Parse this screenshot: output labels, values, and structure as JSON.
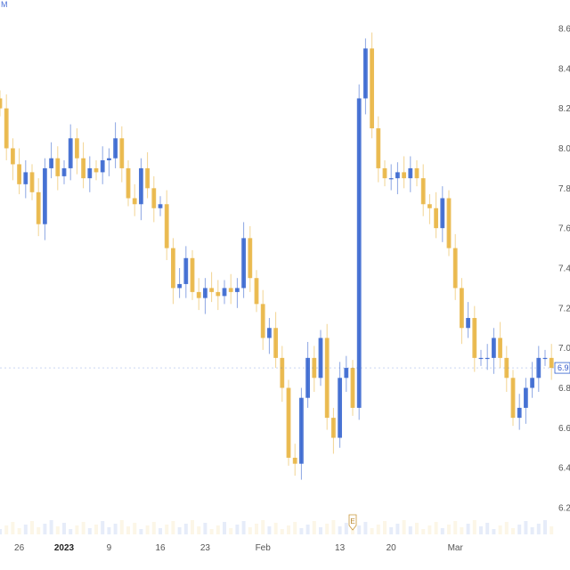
{
  "chart_data": {
    "type": "candlestick",
    "title": "",
    "xlabel": "",
    "ylabel": "",
    "ylim": [
      6.1,
      8.65
    ],
    "y_ticks": [
      "6.2",
      "6.4",
      "6.6",
      "6.8",
      "7.0",
      "7.2",
      "7.4",
      "7.6",
      "7.8",
      "8.0",
      "8.2",
      "8.4",
      "8.6"
    ],
    "x_ticks": [
      {
        "label": "26",
        "index": 3,
        "bold": false
      },
      {
        "label": "2023",
        "index": 10,
        "bold": true
      },
      {
        "label": "9",
        "index": 17,
        "bold": false
      },
      {
        "label": "16",
        "index": 25,
        "bold": false
      },
      {
        "label": "23",
        "index": 32,
        "bold": false
      },
      {
        "label": "Feb",
        "index": 41,
        "bold": false
      },
      {
        "label": "13",
        "index": 53,
        "bold": false
      },
      {
        "label": "20",
        "index": 61,
        "bold": false
      },
      {
        "label": "Mar",
        "index": 71,
        "bold": false
      }
    ],
    "up_color": "#2f5fce",
    "down_color": "#e8b13a",
    "last_price_label": "6.9",
    "earnings_marker": {
      "label": "E",
      "index": 55
    },
    "corner_label": "M",
    "close": [
      8.2,
      8.0,
      7.92,
      7.82,
      7.88,
      7.78,
      7.62,
      7.9,
      7.95,
      7.86,
      7.9,
      8.05,
      7.95,
      7.85,
      7.9,
      7.88,
      7.94,
      7.95,
      8.05,
      7.9,
      7.75,
      7.72,
      7.9,
      7.8,
      7.7,
      7.72,
      7.5,
      7.3,
      7.32,
      7.45,
      7.28,
      7.25,
      7.3,
      7.28,
      7.26,
      7.3,
      7.28,
      7.3,
      7.55,
      7.35,
      7.22,
      7.05,
      7.1,
      6.95,
      6.8,
      6.45,
      6.42,
      6.75,
      6.95,
      6.85,
      7.05,
      6.65,
      6.55,
      6.85,
      6.9,
      6.7,
      8.25,
      8.5,
      8.1,
      7.9,
      7.85,
      7.85,
      7.88,
      7.85,
      7.9,
      7.85,
      7.72,
      7.7,
      7.6,
      7.75,
      7.5,
      7.3,
      7.1,
      7.15,
      6.95,
      6.95,
      6.95,
      7.05,
      6.95,
      6.85,
      6.65,
      6.7,
      6.8,
      6.85,
      6.95,
      6.95,
      6.9
    ]
  }
}
